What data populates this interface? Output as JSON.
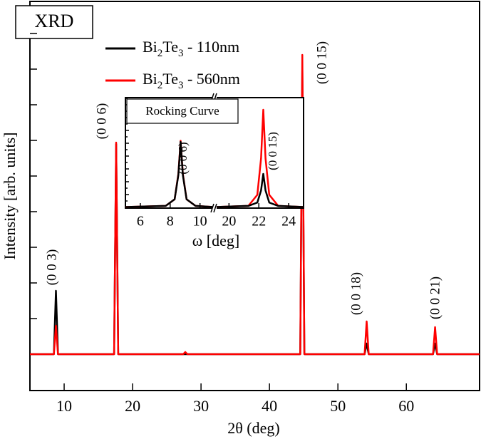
{
  "chart_data": [
    {
      "type": "line",
      "title": "XRD",
      "xlabel": "2θ (deg)",
      "ylabel": "Intensity [arb. units]",
      "xlim": [
        5,
        70.7
      ],
      "ylim": [
        -1.02,
        9.9
      ],
      "xticks": [
        10,
        20,
        30,
        40,
        50,
        60
      ],
      "yticks": [
        0,
        1,
        2,
        3,
        4,
        5,
        6,
        7,
        8,
        9
      ],
      "legend": "upper center",
      "annotations": [
        "(0 0 3)",
        "(0 0 6)",
        "(0 0 15)",
        "(0 0 18)",
        "(0 0 21)"
      ],
      "series": [
        {
          "name": "Bi2Te3 - 110nm",
          "color": "#000000",
          "x": [
            5,
            8.5,
            8.8,
            9.1,
            17.3,
            17.6,
            17.9,
            44.5,
            44.8,
            45.1,
            53.9,
            54.2,
            54.5,
            63.9,
            64.2,
            64.5,
            70.7
          ],
          "values": [
            0,
            0,
            1.78,
            0,
            0,
            5.9,
            0,
            0,
            8.0,
            0,
            0,
            0.3,
            0,
            0,
            0.3,
            0,
            0
          ]
        },
        {
          "name": "Bi2Te3 - 560nm",
          "color": "#ff0000",
          "x": [
            5,
            8.5,
            8.8,
            9.1,
            17.3,
            17.6,
            17.9,
            27.4,
            27.7,
            28.0,
            44.5,
            44.8,
            45.1,
            53.9,
            54.2,
            54.5,
            63.9,
            64.2,
            64.5,
            70.7
          ],
          "values": [
            0,
            0,
            0.8,
            0,
            0,
            5.94,
            0,
            0,
            0.06,
            0,
            0,
            8.4,
            0,
            0,
            0.92,
            0,
            0,
            0.76,
            0,
            0
          ]
        }
      ]
    },
    {
      "type": "line",
      "title": "Rocking Curve",
      "xlabel": "ω [deg]",
      "xlim": [
        5,
        25
      ],
      "xbreak": [
        10.9,
        19.1
      ],
      "ylim": [
        0,
        10
      ],
      "xticks": [
        6,
        8,
        10,
        20,
        22,
        24
      ],
      "annotations": [
        "(0 0 6)",
        "(0 0 15)"
      ],
      "series": [
        {
          "color": "#ff0000",
          "x": [
            5,
            7.7,
            8.3,
            8.55,
            8.7,
            8.85,
            9.1,
            9.7,
            10.9,
            15,
            19.1,
            21.3,
            21.9,
            22.15,
            22.3,
            22.45,
            22.7,
            23.3,
            25
          ],
          "values": [
            0.1,
            0.2,
            0.8,
            3.1,
            6.1,
            3.1,
            0.8,
            0.2,
            0.1,
            null,
            0.1,
            0.2,
            1.2,
            4.5,
            8.9,
            4.5,
            1.2,
            0.2,
            0.1
          ]
        },
        {
          "color": "#000000",
          "x": [
            5,
            7.7,
            8.3,
            8.55,
            8.7,
            8.85,
            9.1,
            9.7,
            10.9,
            15,
            19.1,
            21.3,
            21.9,
            22.15,
            22.3,
            22.45,
            22.7,
            23.3,
            25
          ],
          "values": [
            0.1,
            0.2,
            0.8,
            3.0,
            6.0,
            3.0,
            0.8,
            0.2,
            0.1,
            null,
            0.1,
            0.2,
            0.5,
            1.6,
            3.1,
            1.6,
            0.5,
            0.2,
            0.1
          ]
        }
      ]
    }
  ]
}
